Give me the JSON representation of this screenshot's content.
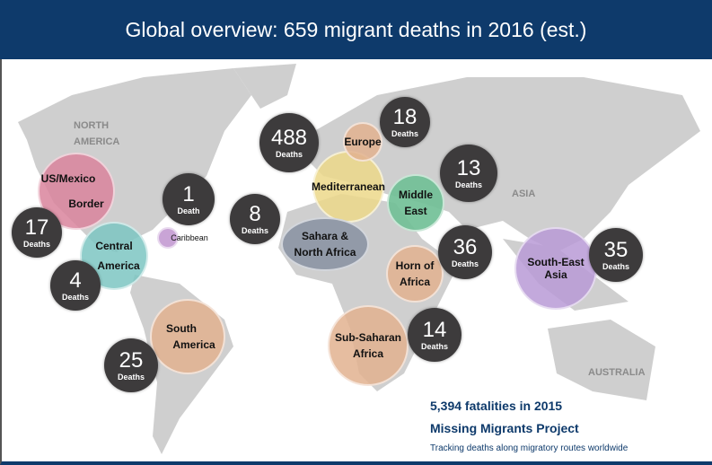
{
  "title": "Global overview: 659 migrant deaths in 2016 (est.)",
  "continents": {
    "north_america_1": "NORTH",
    "north_america_2": "AMERICA",
    "asia": "ASIA",
    "australia": "AUSTRALIA"
  },
  "regions": [
    {
      "name": "US/Mexico",
      "name2": "Border",
      "deaths": "17",
      "unit": "Deaths",
      "color": "#d9849c"
    },
    {
      "name": "Central",
      "name2": "America",
      "deaths": "4",
      "unit": "Deaths",
      "color": "#7cc6c2"
    },
    {
      "name": "Caribbean",
      "deaths": "1",
      "unit": "Death",
      "color": "#c39ad2"
    },
    {
      "name": "South",
      "name2": "America",
      "deaths": "25",
      "unit": "Deaths",
      "color": "#e2b28f"
    },
    {
      "name": "Mediterranean",
      "deaths": "488",
      "unit": "Deaths",
      "color": "#ecd88a"
    },
    {
      "name": "Europe",
      "deaths": "18",
      "unit": "Deaths",
      "color": "#e2b28f"
    },
    {
      "name": "Sahara &",
      "name2": "North Africa",
      "deaths": "8",
      "unit": "Deaths",
      "color": "#8b93a3"
    },
    {
      "name": "Middle",
      "name2": "East",
      "deaths": "13",
      "unit": "Deaths",
      "color": "#6fbf95"
    },
    {
      "name": "Horn of",
      "name2": "Africa",
      "deaths": "36",
      "unit": "Deaths",
      "color": "#e2b28f"
    },
    {
      "name": "Sub-Saharan",
      "name2": "Africa",
      "deaths": "14",
      "unit": "Deaths",
      "color": "#e2b28f"
    },
    {
      "name": "South-East",
      "name2": "Asia",
      "deaths": "35",
      "unit": "Deaths",
      "color": "#b89ad6"
    }
  ],
  "footer": {
    "stat": "5,394 fatalities in 2015",
    "project": "Missing Migrants Project",
    "tagline": "Tracking deaths along migratory routes worldwide"
  }
}
